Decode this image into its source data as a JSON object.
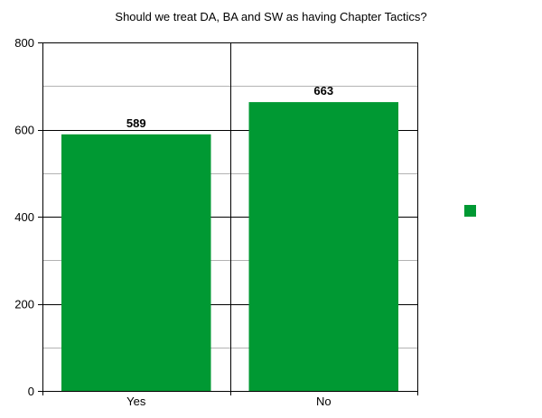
{
  "chart_data": {
    "type": "bar",
    "title": "Should we treat DA, BA and SW as having Chapter Tactics?",
    "categories": [
      "Yes",
      "No"
    ],
    "series": [
      {
        "values": [
          589,
          663
        ],
        "color": "#009933"
      }
    ],
    "data_labels": [
      "589",
      "663"
    ],
    "y_ticks": [
      "0",
      "200",
      "400",
      "600",
      "800"
    ],
    "ylim": [
      0,
      800
    ],
    "major_tick_step": 200,
    "minor_tick_step": 100,
    "grid": true,
    "legend_position": "right",
    "colors": {
      "bar": "#009933",
      "axis": "#000000",
      "major_grid": "#000000",
      "minor_grid": "#b3b3b3"
    }
  }
}
